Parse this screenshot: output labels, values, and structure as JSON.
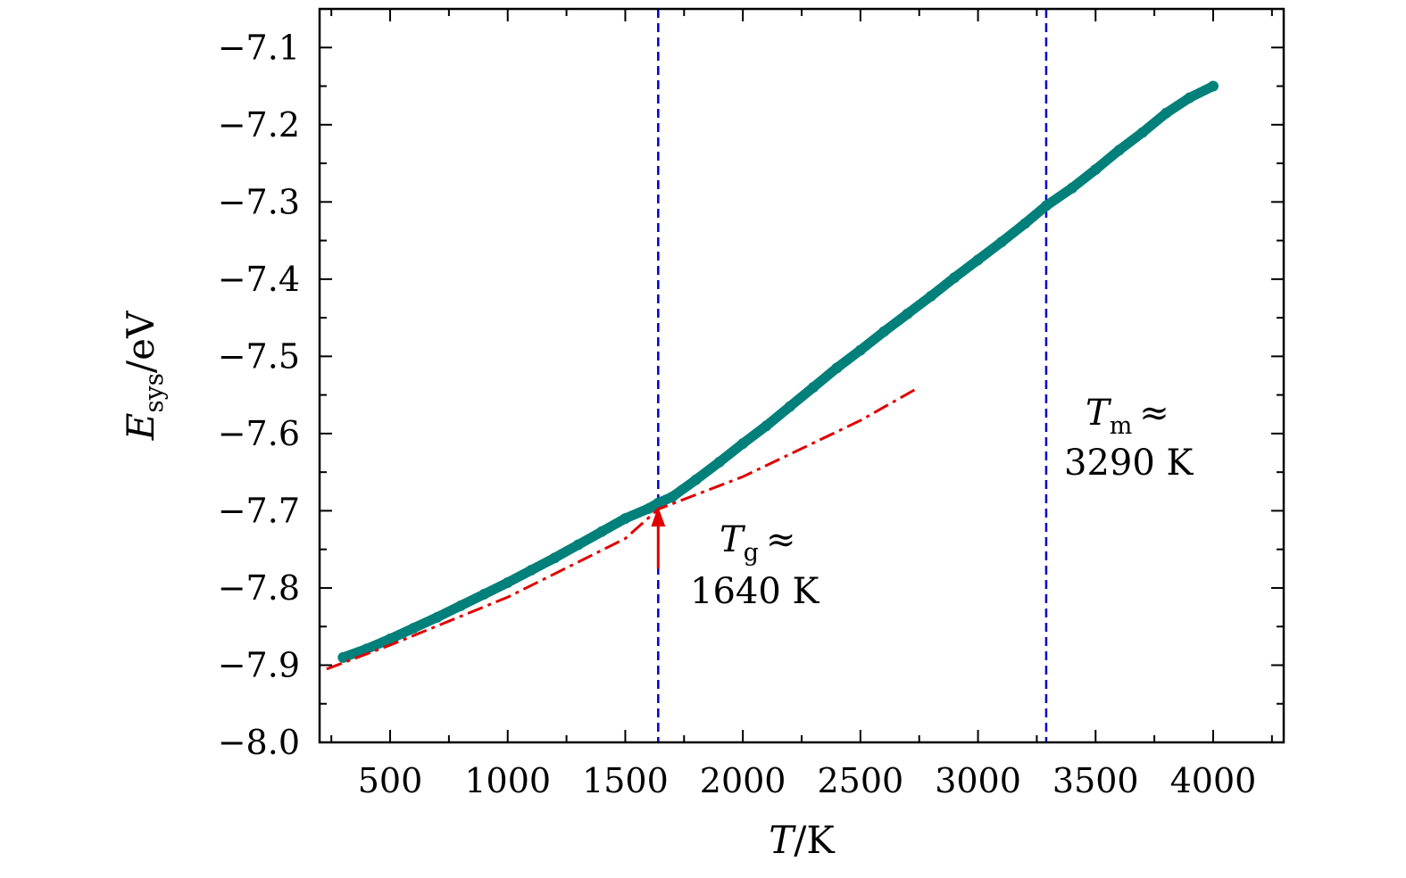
{
  "chart_data": {
    "type": "scatter",
    "xlabel": {
      "symbol": "T",
      "unit": "/K"
    },
    "ylabel": {
      "symbol": "E",
      "subscript": "sys",
      "unit": "/eV"
    },
    "xlim": [
      200,
      4300
    ],
    "ylim": [
      -8.0,
      -7.05
    ],
    "xticks": [
      500,
      1000,
      1500,
      2000,
      2500,
      3000,
      3500,
      4000
    ],
    "xtick_labels": [
      "500",
      "1000",
      "1500",
      "2000",
      "2500",
      "3000",
      "3500",
      "4000"
    ],
    "yticks": [
      -8.0,
      -7.9,
      -7.8,
      -7.7,
      -7.6,
      -7.5,
      -7.4,
      -7.3,
      -7.2,
      -7.1
    ],
    "ytick_labels": [
      "−8.0",
      "−7.9",
      "−7.8",
      "−7.7",
      "−7.6",
      "−7.5",
      "−7.4",
      "−7.3",
      "−7.2",
      "−7.1"
    ],
    "grid": false,
    "colors": {
      "data": "#00807a",
      "fit": "#e00000",
      "vline": "#0000c8",
      "arrow": "#e00000"
    },
    "series": [
      {
        "x": [
          300,
          400,
          500,
          600,
          700,
          800,
          900,
          1000,
          1100,
          1200,
          1300,
          1400,
          1500,
          1600,
          1640,
          1700,
          1800,
          1900,
          2000,
          2100,
          2200,
          2300,
          2400,
          2500,
          2600,
          2700,
          2800,
          2900,
          3000,
          3100,
          3200,
          3290,
          3400,
          3500,
          3600,
          3700,
          3800,
          3900,
          4000
        ],
        "y": [
          -7.89,
          -7.879,
          -7.866,
          -7.852,
          -7.838,
          -7.823,
          -7.808,
          -7.793,
          -7.777,
          -7.761,
          -7.744,
          -7.727,
          -7.71,
          -7.697,
          -7.69,
          -7.682,
          -7.66,
          -7.637,
          -7.613,
          -7.59,
          -7.565,
          -7.54,
          -7.515,
          -7.492,
          -7.468,
          -7.445,
          -7.422,
          -7.398,
          -7.375,
          -7.352,
          -7.328,
          -7.305,
          -7.282,
          -7.258,
          -7.233,
          -7.21,
          -7.185,
          -7.165,
          -7.15
        ]
      }
    ],
    "fit_line": {
      "x": [
        230,
        500,
        1000,
        1500,
        1640,
        2000,
        2500,
        2750
      ],
      "y": [
        -7.905,
        -7.874,
        -7.812,
        -7.736,
        -7.698,
        -7.656,
        -7.583,
        -7.54
      ]
    },
    "vlines": [
      1640,
      3290
    ],
    "arrow": {
      "x": 1640,
      "y_start": -7.775,
      "y_end": -7.695
    },
    "annotations": [
      {
        "symbol": "T",
        "subscript": "g",
        "rel": "≈",
        "value": "1640 K"
      },
      {
        "symbol": "T",
        "subscript": "m",
        "rel": "≈",
        "value": "3290 K"
      }
    ]
  }
}
